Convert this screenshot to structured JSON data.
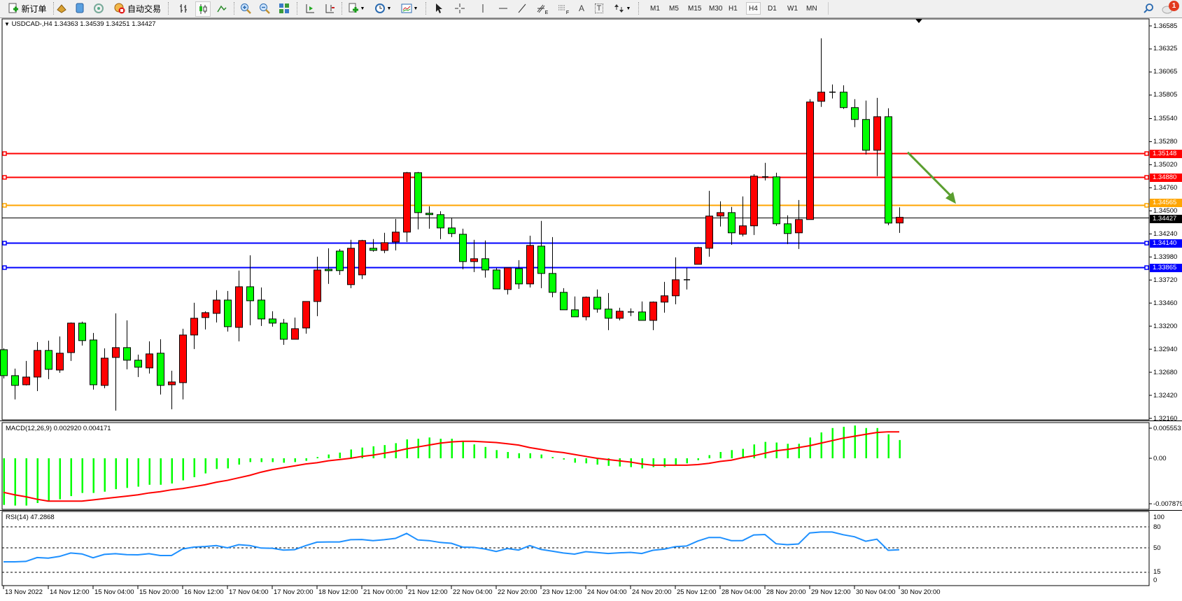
{
  "toolbar": {
    "new_order_label": "新订单",
    "auto_trading_label": "自动交易",
    "text_tool_label": "T",
    "label_tool_label": "A",
    "fibo_e_label": "E",
    "fibo_f_label": "F",
    "timeframes": [
      "M1",
      "M5",
      "M15",
      "M30",
      "H1",
      "H4",
      "D1",
      "W1",
      "MN"
    ],
    "active_timeframe": "H4",
    "notification_count": "1"
  },
  "chart": {
    "header": "USDCAD-,H4  1.34363 1.34539 1.34251 1.34427",
    "colors": {
      "up": "#ff0000",
      "down": "#00ff00",
      "macd_hist": "#00ff00",
      "macd_signal": "#ff0000",
      "rsi": "#1e90ff",
      "arrow": "#5a9e2f"
    },
    "price_axis": [
      "1.36585",
      "1.36325",
      "1.36065",
      "1.35805",
      "1.35540",
      "1.35280",
      "1.35020",
      "1.34760",
      "1.34500",
      "1.34240",
      "1.33980",
      "1.33720",
      "1.33460",
      "1.33200",
      "1.32940",
      "1.32680",
      "1.32420",
      "1.32160"
    ],
    "price_range": [
      1.3216,
      1.36585
    ],
    "current_price": "1.34427",
    "levels": [
      {
        "price": "1.35148",
        "color": "#ff0000"
      },
      {
        "price": "1.34880",
        "color": "#ff0000"
      },
      {
        "price": "1.34565",
        "color": "#ffa500"
      },
      {
        "price": "1.34140",
        "color": "#0000ff"
      },
      {
        "price": "1.33865",
        "color": "#0000ff"
      }
    ],
    "annotation": {
      "type": "arrow",
      "direction": "down",
      "from_price": 1.3516,
      "to_price": 1.3458
    },
    "time_labels": [
      "13 Nov 2022",
      "14 Nov 12:00",
      "15 Nov 04:00",
      "15 Nov 20:00",
      "16 Nov 12:00",
      "17 Nov 04:00",
      "17 Nov 20:00",
      "18 Nov 12:00",
      "21 Nov 00:00",
      "21 Nov 12:00",
      "22 Nov 04:00",
      "22 Nov 20:00",
      "23 Nov 12:00",
      "24 Nov 04:00",
      "24 Nov 20:00",
      "25 Nov 12:00",
      "28 Nov 04:00",
      "28 Nov 20:00",
      "29 Nov 12:00",
      "30 Nov 04:00",
      "30 Nov 20:00"
    ],
    "ohlc": [
      [
        1.32934,
        1.3295,
        1.32611,
        1.32642
      ],
      [
        1.32642,
        1.32721,
        1.32374,
        1.32532
      ],
      [
        1.32539,
        1.32808,
        1.32532,
        1.32626
      ],
      [
        1.32626,
        1.33021,
        1.32468,
        1.32926
      ],
      [
        1.32926,
        1.33037,
        1.32603,
        1.32713
      ],
      [
        1.32705,
        1.33084,
        1.32674,
        1.32895
      ],
      [
        1.32902,
        1.33242,
        1.32808,
        1.33234
      ],
      [
        1.33234,
        1.3325,
        1.32981,
        1.33037
      ],
      [
        1.33044,
        1.33123,
        1.32484,
        1.32539
      ],
      [
        1.32532,
        1.3295,
        1.325,
        1.32839
      ],
      [
        1.32847,
        1.33344,
        1.32248,
        1.32958
      ],
      [
        1.32958,
        1.33265,
        1.32713,
        1.32816
      ],
      [
        1.32816,
        1.32879,
        1.32626,
        1.32737
      ],
      [
        1.32729,
        1.33029,
        1.32666,
        1.32887
      ],
      [
        1.32895,
        1.33052,
        1.32429,
        1.32532
      ],
      [
        1.32539,
        1.32697,
        1.32263,
        1.32571
      ],
      [
        1.32563,
        1.33171,
        1.32374,
        1.331
      ],
      [
        1.331,
        1.33463,
        1.32942,
        1.33289
      ],
      [
        1.33297,
        1.33368,
        1.33163,
        1.33352
      ],
      [
        1.33344,
        1.33605,
        1.33242,
        1.33494
      ],
      [
        1.33494,
        1.33597,
        1.33139,
        1.33194
      ],
      [
        1.33186,
        1.33826,
        1.33029,
        1.33644
      ],
      [
        1.33644,
        1.33999,
        1.3321,
        1.33486
      ],
      [
        1.33494,
        1.33636,
        1.33202,
        1.33281
      ],
      [
        1.33281,
        1.33368,
        1.33194,
        1.33234
      ],
      [
        1.33234,
        1.33281,
        1.32989,
        1.33052
      ],
      [
        1.33052,
        1.33297,
        1.33052,
        1.33171
      ],
      [
        1.33179,
        1.33478,
        1.33115,
        1.33478
      ],
      [
        1.33478,
        1.33983,
        1.33313,
        1.33833
      ],
      [
        1.33841,
        1.34078,
        1.33676,
        1.33826
      ],
      [
        1.34046,
        1.3407,
        1.33778,
        1.33826
      ],
      [
        1.33668,
        1.34173,
        1.33628,
        1.34078
      ],
      [
        1.33778,
        1.34173,
        1.33731,
        1.34165
      ],
      [
        1.34078,
        1.34181,
        1.34039,
        1.34054
      ],
      [
        1.34054,
        1.34252,
        1.34023,
        1.34141
      ],
      [
        1.34149,
        1.34409,
        1.34054,
        1.3426
      ],
      [
        1.3426,
        1.34938,
        1.34149,
        1.3493
      ],
      [
        1.3493,
        1.34938,
        1.34291,
        1.3448
      ],
      [
        1.34473,
        1.34551,
        1.34299,
        1.34457
      ],
      [
        1.34457,
        1.34496,
        1.34181,
        1.34307
      ],
      [
        1.34307,
        1.34425,
        1.34204,
        1.34244
      ],
      [
        1.34236,
        1.34299,
        1.33841,
        1.33928
      ],
      [
        1.33928,
        1.34173,
        1.3381,
        1.3396
      ],
      [
        1.3396,
        1.34165,
        1.33747,
        1.33833
      ],
      [
        1.33833,
        1.33857,
        1.3362,
        1.3362
      ],
      [
        1.33613,
        1.33857,
        1.33557,
        1.33857
      ],
      [
        1.33849,
        1.33944,
        1.3362,
        1.33676
      ],
      [
        1.33676,
        1.3422,
        1.33636,
        1.3411
      ],
      [
        1.34102,
        1.34386,
        1.33628,
        1.33794
      ],
      [
        1.33794,
        1.34204,
        1.33526,
        1.33581
      ],
      [
        1.33581,
        1.33628,
        1.33384,
        1.33384
      ],
      [
        1.33384,
        1.33534,
        1.33305,
        1.33305
      ],
      [
        1.33305,
        1.33534,
        1.33265,
        1.33526
      ],
      [
        1.33526,
        1.33613,
        1.33352,
        1.33392
      ],
      [
        1.33392,
        1.33573,
        1.33155,
        1.33289
      ],
      [
        1.33289,
        1.33407,
        1.33265,
        1.33368
      ],
      [
        1.3336,
        1.334,
        1.33313,
        1.3336
      ],
      [
        1.3336,
        1.33478,
        1.33265,
        1.33265
      ],
      [
        1.33265,
        1.33478,
        1.33155,
        1.33471
      ],
      [
        1.33471,
        1.33699,
        1.33352,
        1.33542
      ],
      [
        1.33542,
        1.33975,
        1.33447,
        1.33723
      ],
      [
        1.33723,
        1.33857,
        1.33613,
        1.33723
      ],
      [
        1.33897,
        1.34094,
        1.33897,
        1.34086
      ],
      [
        1.34078,
        1.34725,
        1.33983,
        1.34441
      ],
      [
        1.34441,
        1.34607,
        1.34323,
        1.3448
      ],
      [
        1.3448,
        1.34544,
        1.34117,
        1.34252
      ],
      [
        1.34236,
        1.34662,
        1.34212,
        1.34331
      ],
      [
        1.34331,
        1.34914,
        1.34228,
        1.34891
      ],
      [
        1.34883,
        1.35041,
        1.34843,
        1.34883
      ],
      [
        1.34883,
        1.3493,
        1.34331,
        1.34354
      ],
      [
        1.34354,
        1.34449,
        1.34125,
        1.34244
      ],
      [
        1.34252,
        1.34622,
        1.3407,
        1.34402
      ],
      [
        1.34402,
        1.35759,
        1.34402,
        1.35727
      ],
      [
        1.35735,
        1.36445,
        1.35672,
        1.35838
      ],
      [
        1.35838,
        1.35924,
        1.35767,
        1.35838
      ],
      [
        1.35838,
        1.35916,
        1.35648,
        1.35664
      ],
      [
        1.35664,
        1.35759,
        1.35443,
        1.3553
      ],
      [
        1.3553,
        1.35743,
        1.35135,
        1.35183
      ],
      [
        1.35183,
        1.35774,
        1.34891,
        1.35561
      ],
      [
        1.35561,
        1.35656,
        1.34338,
        1.34362
      ],
      [
        1.34363,
        1.34539,
        1.34251,
        1.34427
      ]
    ]
  },
  "macd": {
    "label": "MACD(12,26,9) 0.002920 0.004171",
    "axis": [
      "0.005553",
      "0.00",
      "-0.007879"
    ],
    "range": [
      -0.007879,
      0.005553
    ],
    "histogram": [
      -0.0074,
      -0.0075,
      -0.0075,
      -0.0071,
      -0.0068,
      -0.0065,
      -0.006,
      -0.0055,
      -0.0055,
      -0.0053,
      -0.0049,
      -0.0047,
      -0.0045,
      -0.0042,
      -0.0042,
      -0.004,
      -0.0035,
      -0.003,
      -0.0024,
      -0.0017,
      -0.0016,
      -0.001,
      -0.0006,
      -0.0006,
      -0.0006,
      -0.0007,
      -0.0006,
      -0.0004,
      0.0002,
      0.0006,
      0.0009,
      0.0014,
      0.0017,
      0.0019,
      0.0021,
      0.0024,
      0.003,
      0.0031,
      0.0033,
      0.0031,
      0.0031,
      0.0027,
      0.0022,
      0.0018,
      0.0013,
      0.001,
      0.0008,
      0.0008,
      0.0006,
      0.0002,
      -0.0002,
      -0.0007,
      -0.0008,
      -0.001,
      -0.0012,
      -0.0013,
      -0.0014,
      -0.0016,
      -0.0014,
      -0.0014,
      -0.001,
      -0.0008,
      -0.0003,
      0.0005,
      0.001,
      0.0013,
      0.0015,
      0.0022,
      0.0026,
      0.0025,
      0.0023,
      0.0023,
      0.0033,
      0.0041,
      0.0048,
      0.005,
      0.0052,
      0.0048,
      0.0048,
      0.0038,
      0.0029
    ],
    "signal": [
      -0.0054,
      -0.0058,
      -0.0061,
      -0.0065,
      -0.0068,
      -0.0068,
      -0.0068,
      -0.0068,
      -0.0066,
      -0.0064,
      -0.0062,
      -0.006,
      -0.0058,
      -0.0055,
      -0.0053,
      -0.005,
      -0.0048,
      -0.0045,
      -0.0042,
      -0.0038,
      -0.0035,
      -0.0031,
      -0.0027,
      -0.0022,
      -0.0018,
      -0.0015,
      -0.0012,
      -0.0009,
      -0.0007,
      -0.0004,
      -0.0002,
      0.0,
      0.0003,
      0.0005,
      0.0008,
      0.0011,
      0.0015,
      0.0018,
      0.0021,
      0.0024,
      0.0026,
      0.0027,
      0.0027,
      0.0026,
      0.0025,
      0.0023,
      0.0021,
      0.0017,
      0.0014,
      0.0011,
      0.0009,
      0.0006,
      0.0003,
      0.0,
      -0.0002,
      -0.0004,
      -0.0006,
      -0.0009,
      -0.0011,
      -0.0011,
      -0.0011,
      -0.0011,
      -0.001,
      -0.0008,
      -0.0005,
      -0.0003,
      0.0001,
      0.0004,
      0.0008,
      0.0012,
      0.0014,
      0.0017,
      0.002,
      0.0024,
      0.0028,
      0.0032,
      0.0035,
      0.0038,
      0.0041,
      0.0042,
      0.0042
    ]
  },
  "rsi": {
    "label": "RSI(14) 47.2868",
    "axis": [
      "100",
      "80",
      "50",
      "15",
      "0"
    ],
    "levels": [
      80,
      50,
      15
    ],
    "values": [
      30,
      30,
      30.6,
      36.1,
      35.2,
      37.7,
      42.6,
      41.3,
      35.8,
      40.6,
      41.6,
      40.3,
      40,
      41.6,
      39,
      39,
      48.4,
      51,
      51.9,
      53.2,
      50,
      54.5,
      53.2,
      49.7,
      49.4,
      46.8,
      47.4,
      53.2,
      58.1,
      58.4,
      58.4,
      61.6,
      61.9,
      60.3,
      61.6,
      63.5,
      70.6,
      61.3,
      60.3,
      57.7,
      56.5,
      51,
      50.6,
      48.4,
      44.8,
      49,
      46.8,
      53.2,
      47.7,
      45.2,
      42.6,
      41,
      44.5,
      43.2,
      41.9,
      42.9,
      43.5,
      41.9,
      46.5,
      48.1,
      51.6,
      52.6,
      59.7,
      64.8,
      64.8,
      60.3,
      60.3,
      68.4,
      69,
      55.8,
      54.5,
      55.5,
      71.3,
      72.6,
      72.6,
      68.7,
      65.8,
      59.4,
      62.3,
      46.5,
      47.3
    ]
  }
}
